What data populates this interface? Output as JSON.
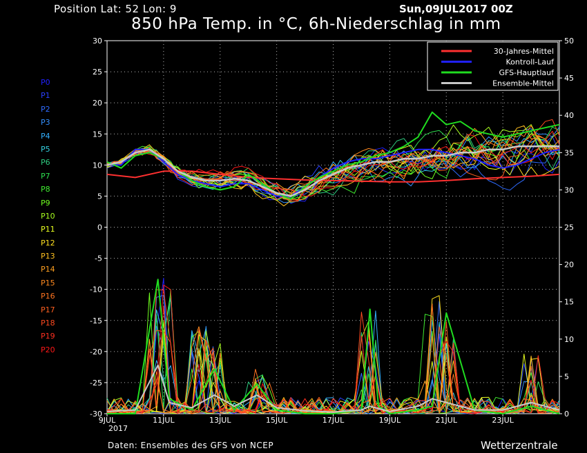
{
  "header": {
    "position_text": "Position   Lat: 52  Lon: 9",
    "run_date": "Sun,09JUL2017 00Z",
    "title": "850 hPa Temp. in °C, 6h-Niederschlag in mm"
  },
  "footer": {
    "source": "Daten: Ensembles des GFS von NCEP",
    "brand": "Wetterzentrale"
  },
  "members": [
    {
      "label": "P0",
      "color": "#2020ff"
    },
    {
      "label": "P1",
      "color": "#2a40ff"
    },
    {
      "label": "P2",
      "color": "#2f6bff"
    },
    {
      "label": "P3",
      "color": "#3390ff"
    },
    {
      "label": "P4",
      "color": "#33b0ff"
    },
    {
      "label": "P5",
      "color": "#33d0e0"
    },
    {
      "label": "P6",
      "color": "#2ecc80"
    },
    {
      "label": "P7",
      "color": "#2ee050"
    },
    {
      "label": "P8",
      "color": "#40ee30"
    },
    {
      "label": "P9",
      "color": "#70ff20"
    },
    {
      "label": "P10",
      "color": "#a8ff20"
    },
    {
      "label": "P11",
      "color": "#e8ff20"
    },
    {
      "label": "P12",
      "color": "#ffe020"
    },
    {
      "label": "P13",
      "color": "#ffc020"
    },
    {
      "label": "P14",
      "color": "#ffa020"
    },
    {
      "label": "P15",
      "color": "#ff8a20"
    },
    {
      "label": "P16",
      "color": "#ff7420"
    },
    {
      "label": "P17",
      "color": "#ff6020"
    },
    {
      "label": "P18",
      "color": "#ff4a20"
    },
    {
      "label": "P19",
      "color": "#ff3020"
    },
    {
      "label": "P20",
      "color": "#ff1818"
    }
  ],
  "chart_data": {
    "type": "line",
    "x_tick_labels": [
      "9JUL",
      "11JUL",
      "13JUL",
      "15JUL",
      "17JUL",
      "19JUL",
      "21JUL",
      "23JUL"
    ],
    "x_year_label": "2017",
    "x_tick_days": [
      9,
      11,
      13,
      15,
      17,
      19,
      21,
      23
    ],
    "xlim": [
      9,
      25
    ],
    "y_left_ticks": [
      30,
      25,
      20,
      15,
      10,
      5,
      0,
      -5,
      -10,
      -15,
      -20,
      -25,
      -30
    ],
    "ylim_left": [
      -30,
      30
    ],
    "y_right_ticks": [
      50,
      45,
      40,
      35,
      30,
      25,
      20,
      15,
      10,
      5,
      0
    ],
    "ylim_right": [
      0,
      50
    ],
    "grid": true,
    "legend_position": "top-right",
    "legend": [
      {
        "name": "30-Jahres-Mittel",
        "color": "#ff3030"
      },
      {
        "name": "Kontroll-Lauf",
        "color": "#2020ff"
      },
      {
        "name": "GFS-Hauptlauf",
        "color": "#20dd20"
      },
      {
        "name": "Ensemble-Mittel",
        "color": "#c8c8c8"
      }
    ],
    "climate_mean": {
      "x": [
        9,
        10,
        11,
        12,
        13,
        14,
        15,
        16,
        17,
        18,
        19,
        20,
        21,
        22,
        23,
        24,
        25
      ],
      "y": [
        8.5,
        8.0,
        9.0,
        9.0,
        8.5,
        8.0,
        7.8,
        7.6,
        7.5,
        7.4,
        7.3,
        7.3,
        7.5,
        7.8,
        8.0,
        8.2,
        8.5
      ]
    },
    "ensemble_mean_temp": {
      "x": [
        9,
        9.5,
        10,
        10.5,
        11,
        11.5,
        12,
        12.5,
        13,
        13.5,
        14,
        14.5,
        15,
        15.5,
        16,
        16.5,
        17,
        17.5,
        18,
        18.5,
        19,
        19.5,
        20,
        20.5,
        21,
        21.5,
        22,
        22.5,
        23,
        23.5,
        24,
        24.5,
        25
      ],
      "y": [
        10,
        10.5,
        12.0,
        12.5,
        11.0,
        9.0,
        8.0,
        7.5,
        7.5,
        7.8,
        7.5,
        6.5,
        5.5,
        5.0,
        6.0,
        7.5,
        8.5,
        9.5,
        10.0,
        10.5,
        10.5,
        11.0,
        11.0,
        11.5,
        11.5,
        12.0,
        12.0,
        12.5,
        12.5,
        13.0,
        13.0,
        13.0,
        13.0
      ]
    },
    "control_temp": {
      "x": [
        9,
        9.5,
        10,
        10.5,
        11,
        11.5,
        12,
        12.5,
        13,
        13.5,
        14,
        14.5,
        15,
        15.5,
        16,
        16.5,
        17,
        17.5,
        18,
        18.5,
        19,
        19.5,
        20,
        20.5,
        21,
        21.5,
        22,
        22.5,
        23,
        23.5,
        24,
        24.5,
        25
      ],
      "y": [
        10,
        10,
        12.5,
        12.5,
        10.5,
        8.5,
        7.5,
        7.0,
        6.5,
        7.0,
        7.0,
        6.0,
        5.0,
        5.0,
        6.5,
        8.0,
        9.5,
        10.5,
        11.0,
        11.0,
        11.5,
        12.0,
        12.5,
        12.5,
        12.0,
        11.5,
        11.0,
        10.0,
        9.5,
        10.0,
        11.0,
        12.0,
        12.5
      ]
    },
    "main_temp": {
      "x": [
        9,
        9.5,
        10,
        10.5,
        11,
        11.5,
        12,
        12.5,
        13,
        13.5,
        14,
        14.5,
        15,
        15.5,
        16,
        16.5,
        17,
        17.5,
        18,
        18.5,
        19,
        19.5,
        20,
        20.5,
        21,
        21.5,
        22,
        22.5,
        23,
        23.5,
        24,
        24.5,
        25
      ],
      "y": [
        10.5,
        9.5,
        11.5,
        12.0,
        11.0,
        9.0,
        7.5,
        6.5,
        6.0,
        6.5,
        8.5,
        7.0,
        5.5,
        4.5,
        6.5,
        8.0,
        9.0,
        10.0,
        10.5,
        11.5,
        12.0,
        13.0,
        14.5,
        18.5,
        16.5,
        17.0,
        15.5,
        15.0,
        14.5,
        15.0,
        15.5,
        16.0,
        16.5
      ]
    },
    "precip_spikes": [
      {
        "day": 10.8,
        "mm": 18.5
      },
      {
        "day": 11.0,
        "mm": 17.0
      },
      {
        "day": 12.3,
        "mm": 12.5
      },
      {
        "day": 12.8,
        "mm": 10.5
      },
      {
        "day": 14.4,
        "mm": 6.5
      },
      {
        "day": 18.3,
        "mm": 14.0
      },
      {
        "day": 20.5,
        "mm": 16.0
      },
      {
        "day": 21.0,
        "mm": 13.5
      },
      {
        "day": 24.0,
        "mm": 8.5
      }
    ],
    "precip_ensemble_mean": {
      "x": [
        9,
        10,
        10.8,
        11.2,
        12,
        12.8,
        13.5,
        14.3,
        15,
        16,
        17,
        18,
        18.3,
        19,
        20,
        20.5,
        21,
        22,
        23,
        24,
        25
      ],
      "y": [
        0.3,
        0.5,
        6.5,
        1.5,
        0.8,
        2.5,
        1.0,
        2.5,
        0.8,
        0.4,
        0.2,
        0.5,
        1.0,
        0.3,
        1.0,
        2.0,
        1.5,
        0.5,
        0.5,
        1.5,
        0.5
      ]
    },
    "precip_main": {
      "x": [
        9,
        10,
        10.8,
        11.2,
        12,
        12.8,
        13.5,
        14.3,
        15,
        16,
        17,
        18,
        18.3,
        18.6,
        19,
        20,
        20.5,
        21,
        22,
        23,
        24,
        25
      ],
      "y": [
        0,
        0,
        18.0,
        2.0,
        0.5,
        6.0,
        0.5,
        4.0,
        0.5,
        0,
        0,
        0.5,
        14.0,
        1.0,
        0,
        0.5,
        1.0,
        13.5,
        0.5,
        0,
        1.0,
        0
      ]
    }
  }
}
